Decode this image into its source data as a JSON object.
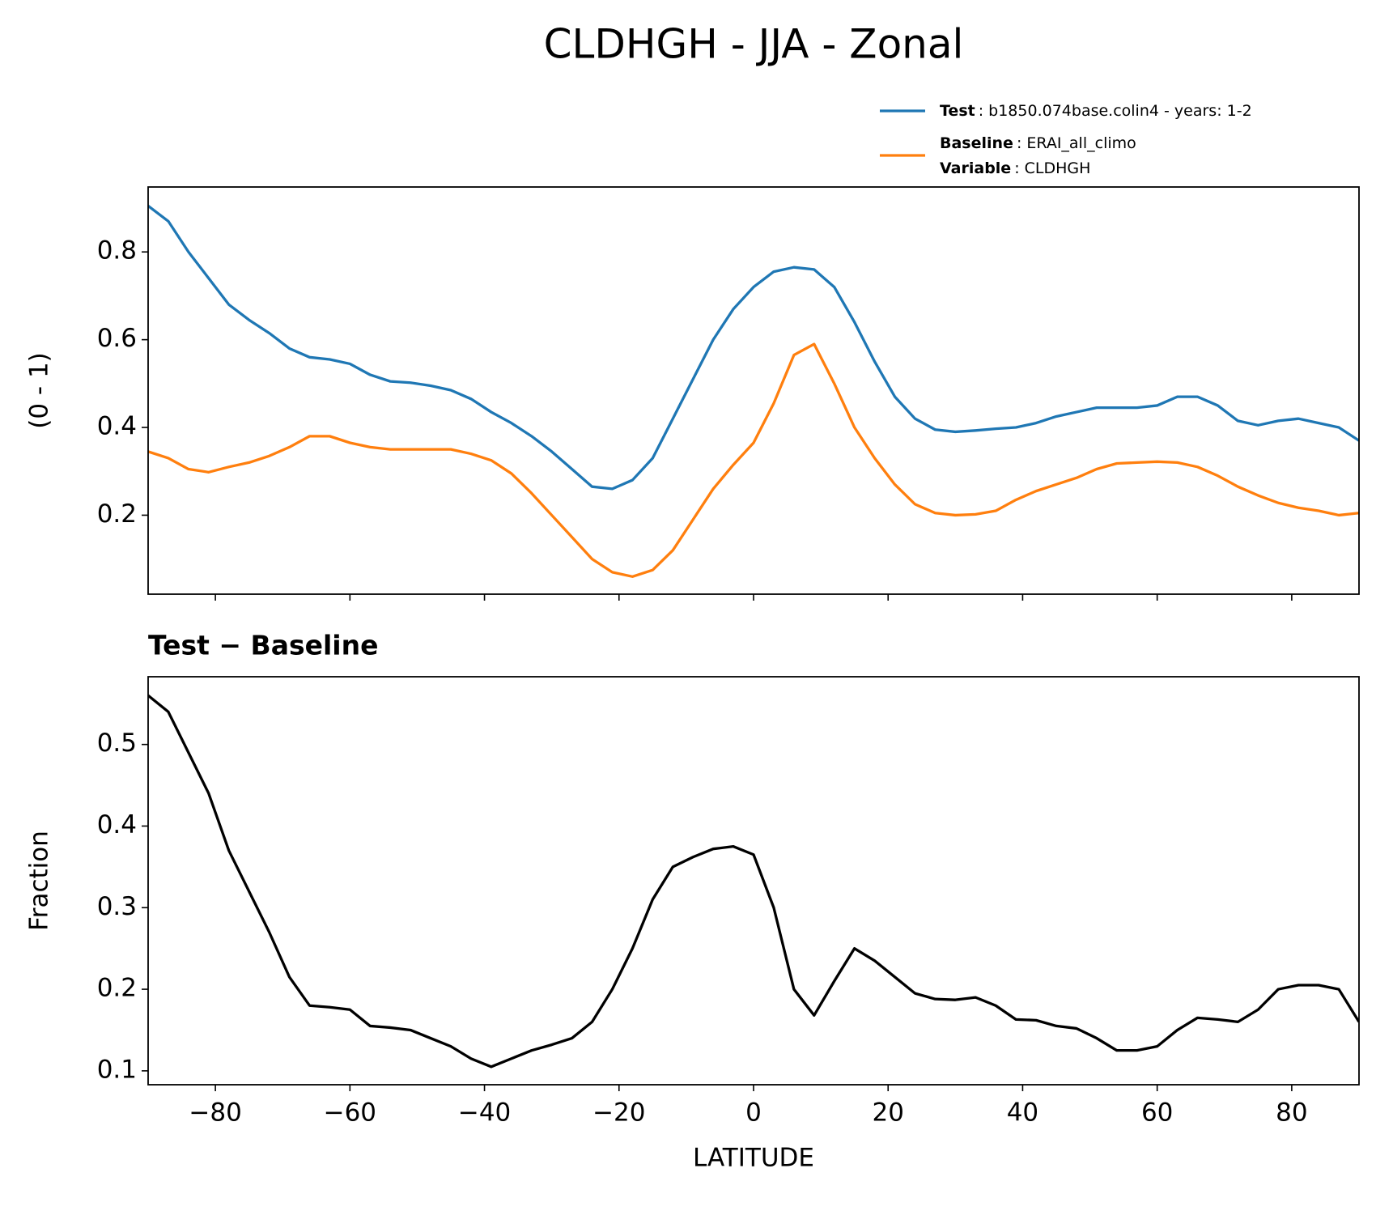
{
  "title": "CLDHGH - JJA - Zonal",
  "chart_data": [
    {
      "type": "line",
      "y_label": "(0 - 1)",
      "x": [
        -90,
        -87,
        -84,
        -81,
        -78,
        -75,
        -72,
        -69,
        -66,
        -63,
        -60,
        -57,
        -54,
        -51,
        -48,
        -45,
        -42,
        -39,
        -36,
        -33,
        -30,
        -27,
        -24,
        -21,
        -18,
        -15,
        -12,
        -9,
        -6,
        -3,
        0,
        3,
        6,
        9,
        12,
        15,
        18,
        21,
        24,
        27,
        30,
        33,
        36,
        39,
        42,
        45,
        48,
        51,
        54,
        57,
        60,
        63,
        66,
        69,
        72,
        75,
        78,
        81,
        84,
        87,
        90
      ],
      "series": [
        {
          "name": "Test",
          "description": ": b1850.074base.colin4 - years: 1-2",
          "color": "#1f77b4",
          "values": [
            0.905,
            0.87,
            0.8,
            0.74,
            0.68,
            0.645,
            0.615,
            0.58,
            0.56,
            0.555,
            0.545,
            0.52,
            0.505,
            0.502,
            0.495,
            0.485,
            0.465,
            0.435,
            0.41,
            0.38,
            0.345,
            0.305,
            0.265,
            0.26,
            0.28,
            0.33,
            0.42,
            0.51,
            0.6,
            0.67,
            0.72,
            0.755,
            0.765,
            0.76,
            0.72,
            0.64,
            0.55,
            0.47,
            0.42,
            0.395,
            0.39,
            0.393,
            0.397,
            0.4,
            0.41,
            0.425,
            0.435,
            0.445,
            0.445,
            0.445,
            0.45,
            0.47,
            0.47,
            0.45,
            0.415,
            0.405,
            0.415,
            0.42,
            0.41,
            0.4,
            0.37
          ]
        },
        {
          "name": "Baseline",
          "description": ": ERAI_all_climo",
          "color": "#ff7f0e",
          "values": [
            0.345,
            0.33,
            0.305,
            0.298,
            0.31,
            0.32,
            0.335,
            0.355,
            0.38,
            0.38,
            0.365,
            0.355,
            0.35,
            0.35,
            0.35,
            0.35,
            0.34,
            0.325,
            0.295,
            0.25,
            0.2,
            0.15,
            0.1,
            0.07,
            0.06,
            0.075,
            0.12,
            0.19,
            0.26,
            0.315,
            0.365,
            0.455,
            0.565,
            0.59,
            0.5,
            0.4,
            0.33,
            0.27,
            0.225,
            0.205,
            0.2,
            0.202,
            0.21,
            0.235,
            0.255,
            0.27,
            0.285,
            0.305,
            0.318,
            0.32,
            0.322,
            0.32,
            0.31,
            0.29,
            0.265,
            0.245,
            0.228,
            0.217,
            0.21,
            0.2,
            0.205
          ]
        }
      ],
      "legend_note": {
        "name": "Variable",
        "description": ": CLDHGH"
      },
      "legend_position": "above-right",
      "xlim": [
        -90,
        90
      ],
      "xticks": [
        -80,
        -60,
        -40,
        -20,
        0,
        20,
        40,
        60,
        80
      ],
      "ylim": [
        0.02,
        0.948
      ],
      "yticks": [
        0.2,
        0.4,
        0.6,
        0.8
      ]
    },
    {
      "type": "line",
      "title": "Test − Baseline",
      "x_label": "LATITUDE",
      "y_label": "Fraction",
      "color": "#000000",
      "x": [
        -90,
        -87,
        -84,
        -81,
        -78,
        -75,
        -72,
        -69,
        -66,
        -63,
        -60,
        -57,
        -54,
        -51,
        -48,
        -45,
        -42,
        -39,
        -36,
        -33,
        -30,
        -27,
        -24,
        -21,
        -18,
        -15,
        -12,
        -9,
        -6,
        -3,
        0,
        3,
        6,
        9,
        12,
        15,
        18,
        21,
        24,
        27,
        30,
        33,
        36,
        39,
        42,
        45,
        48,
        51,
        54,
        57,
        60,
        63,
        66,
        69,
        72,
        75,
        78,
        81,
        84,
        87,
        90
      ],
      "values": [
        0.56,
        0.54,
        0.49,
        0.44,
        0.37,
        0.32,
        0.27,
        0.215,
        0.18,
        0.178,
        0.175,
        0.155,
        0.153,
        0.15,
        0.14,
        0.13,
        0.115,
        0.105,
        0.115,
        0.125,
        0.132,
        0.14,
        0.16,
        0.2,
        0.25,
        0.31,
        0.35,
        0.362,
        0.372,
        0.375,
        0.365,
        0.3,
        0.2,
        0.168,
        0.21,
        0.25,
        0.235,
        0.215,
        0.195,
        0.188,
        0.187,
        0.19,
        0.18,
        0.163,
        0.162,
        0.155,
        0.152,
        0.14,
        0.125,
        0.125,
        0.13,
        0.15,
        0.165,
        0.163,
        0.16,
        0.175,
        0.2,
        0.205,
        0.205,
        0.2,
        0.16
      ],
      "xlim": [
        -90,
        90
      ],
      "xticks": [
        {
          "value": -80,
          "label": "−80"
        },
        {
          "value": -60,
          "label": "−60"
        },
        {
          "value": -40,
          "label": "−40"
        },
        {
          "value": -20,
          "label": "−20"
        },
        0,
        20,
        40,
        60,
        80
      ],
      "ylim": [
        0.083,
        0.583
      ],
      "yticks": [
        0.1,
        0.2,
        0.3,
        0.4,
        0.5
      ]
    }
  ]
}
